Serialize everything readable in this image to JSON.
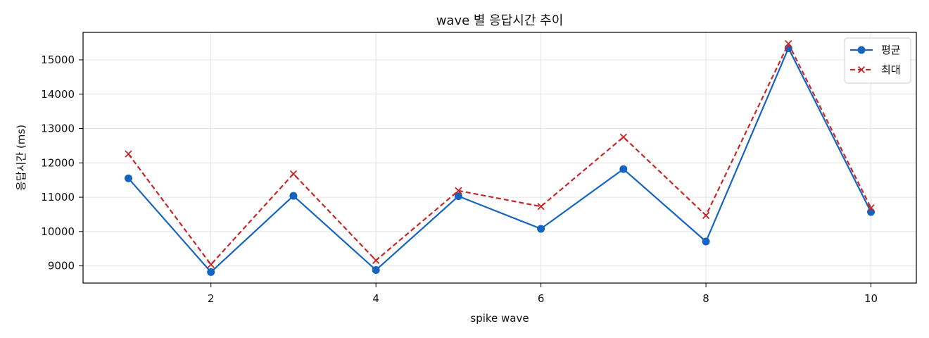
{
  "chart_data": {
    "type": "line",
    "title": "wave 별 응답시간 추이",
    "xlabel": "spike wave",
    "ylabel": "응답시간 (ms)",
    "x": [
      1,
      2,
      3,
      4,
      5,
      6,
      7,
      8,
      9,
      10
    ],
    "xlim": [
      0.45,
      10.55
    ],
    "ylim": [
      8500,
      15800
    ],
    "xticks": [
      2,
      4,
      6,
      8,
      10
    ],
    "yticks": [
      9000,
      10000,
      11000,
      12000,
      13000,
      14000,
      15000
    ],
    "grid": true,
    "legend_position": "top-right",
    "series": [
      {
        "name": "평균",
        "values": [
          11550,
          8820,
          11040,
          8880,
          11030,
          10080,
          11820,
          9710,
          15340,
          10570
        ],
        "color": "#1565c0",
        "style": "solid",
        "marker": "circle"
      },
      {
        "name": "최대",
        "values": [
          12260,
          9040,
          11680,
          9160,
          11190,
          10730,
          12750,
          10470,
          15470,
          10690
        ],
        "color": "#c62828",
        "style": "dashed",
        "marker": "x"
      }
    ]
  }
}
